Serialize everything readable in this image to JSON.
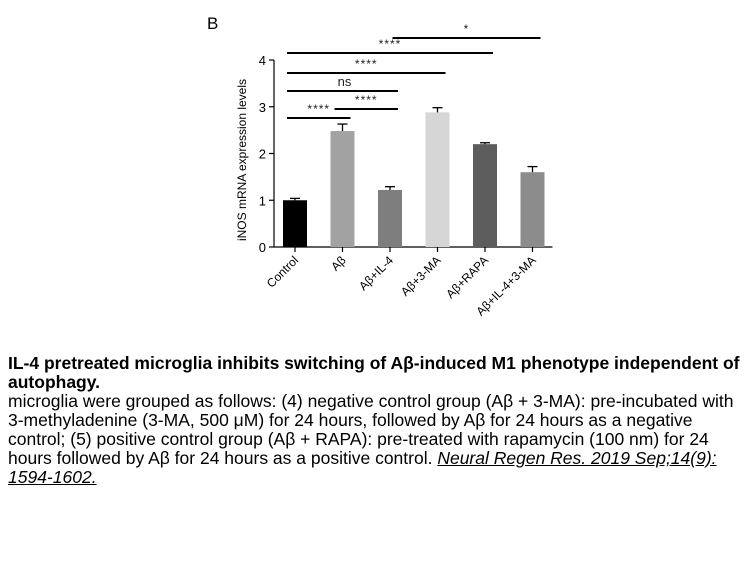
{
  "panel_label": "B",
  "chart_data": {
    "type": "bar",
    "categories": [
      "Control",
      "Aβ",
      "Aβ+IL-4",
      "Aβ+3-MA",
      "Aβ+RAPA",
      "Aβ+IL-4+3-MA"
    ],
    "values": [
      1.0,
      2.48,
      1.22,
      2.88,
      2.2,
      1.6
    ],
    "errors": [
      0.04,
      0.15,
      0.07,
      0.1,
      0.03,
      0.12
    ],
    "bar_colors": [
      "#000000",
      "#a2a2a2",
      "#7e7e7e",
      "#d6d6d6",
      "#5d5d5d",
      "#8c8c8c"
    ],
    "ylabel": "iNOS mRNA expression levels",
    "ylim": [
      0,
      4
    ],
    "yticks": [
      0,
      1,
      2,
      3,
      4
    ],
    "grid": false,
    "significance": [
      {
        "from": 0,
        "to": 1,
        "label": "****"
      },
      {
        "from": 1,
        "to": 2,
        "label": "****"
      },
      {
        "from": 0,
        "to": 2,
        "label": "ns"
      },
      {
        "from": 0,
        "to": 3,
        "label": "****"
      },
      {
        "from": 0,
        "to": 4,
        "label": "****"
      },
      {
        "from": 3,
        "to": 5,
        "label": "*"
      }
    ]
  },
  "caption": {
    "title": "IL-4 pretreated microglia inhibits switching of Aβ-induced M1 phenotype independent of autophagy.",
    "body": "microglia were grouped as follows: (4) negative control group (Aβ + 3-MA): pre-incubated with 3-methyladenine (3-MA, 500 μM) for 24 hours, followed by Aβ for 24 hours as a negative control; (5) positive control group (Aβ + RAPA): pre-treated with rapamycin (100 nm) for 24 hours followed by Aβ for 24 hours as a positive control. ",
    "citation": "Neural Regen Res. 2019 Sep;14(9): 1594-1602."
  }
}
